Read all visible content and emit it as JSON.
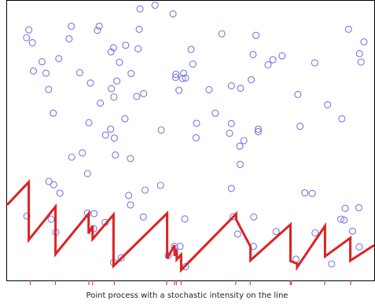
{
  "chart_data": {
    "type": "scatter",
    "title": "",
    "caption": "Point process with a stochastic intensity on the line",
    "xlim": [
      0,
      100
    ],
    "ylim": [
      0,
      100
    ],
    "grid": false,
    "legend": "none",
    "colors": {
      "points": "#7878e8",
      "intensity": "#dd2222",
      "frame": "#000000"
    },
    "points": [
      [
        40.3,
        98.4
      ],
      [
        36.2,
        97.1
      ],
      [
        45.2,
        95.3
      ],
      [
        17.5,
        90.9
      ],
      [
        25.1,
        90.9
      ],
      [
        36.0,
        89.8
      ],
      [
        93.0,
        89.8
      ],
      [
        5.9,
        89.6
      ],
      [
        24.6,
        89.4
      ],
      [
        58.5,
        88.2
      ],
      [
        67.8,
        87.6
      ],
      [
        5.3,
        86.8
      ],
      [
        16.9,
        86.4
      ],
      [
        6.9,
        85.0
      ],
      [
        97.2,
        85.3
      ],
      [
        32.3,
        84.1
      ],
      [
        29.0,
        83.2
      ],
      [
        35.7,
        82.8
      ],
      [
        50.1,
        82.6
      ],
      [
        28.3,
        81.7
      ],
      [
        67.0,
        80.8
      ],
      [
        96.0,
        81.1
      ],
      [
        74.9,
        80.3
      ],
      [
        14.1,
        79.3
      ],
      [
        72.4,
        78.9
      ],
      [
        9.5,
        78.2
      ],
      [
        30.6,
        78.0
      ],
      [
        83.8,
        77.8
      ],
      [
        71.1,
        77.1
      ],
      [
        50.6,
        77.4
      ],
      [
        96.4,
        78.1
      ],
      [
        7.2,
        74.9
      ],
      [
        10.6,
        74.1
      ],
      [
        19.8,
        74.3
      ],
      [
        48.1,
        74.1
      ],
      [
        33.8,
        74.0
      ],
      [
        46.0,
        73.7
      ],
      [
        47.8,
        72.2
      ],
      [
        48.6,
        72.4
      ],
      [
        66.5,
        71.8
      ],
      [
        29.9,
        71.3
      ],
      [
        45.9,
        72.6
      ],
      [
        22.7,
        70.6
      ],
      [
        61.1,
        69.6
      ],
      [
        11.3,
        68.3
      ],
      [
        28.4,
        68.6
      ],
      [
        46.8,
        68.0
      ],
      [
        55.0,
        68.2
      ],
      [
        63.6,
        68.7
      ],
      [
        29.1,
        65.6
      ],
      [
        37.2,
        66.8
      ],
      [
        79.2,
        66.5
      ],
      [
        35.3,
        65.8
      ],
      [
        25.4,
        63.4
      ],
      [
        87.3,
        62.8
      ],
      [
        12.6,
        59.8
      ],
      [
        56.7,
        59.8
      ],
      [
        32.1,
        57.8
      ],
      [
        91.2,
        57.8
      ],
      [
        22.3,
        56.4
      ],
      [
        51.6,
        56.2
      ],
      [
        61.1,
        56.1
      ],
      [
        79.8,
        55.1
      ],
      [
        28.2,
        54.1
      ],
      [
        42.0,
        53.8
      ],
      [
        68.4,
        54.1
      ],
      [
        68.4,
        53.2
      ],
      [
        26.8,
        52.0
      ],
      [
        60.6,
        52.6
      ],
      [
        51.5,
        51.0
      ],
      [
        29.2,
        50.9
      ],
      [
        64.5,
        50.0
      ],
      [
        63.4,
        48.0
      ],
      [
        20.5,
        45.6
      ],
      [
        17.6,
        44.1
      ],
      [
        29.5,
        44.9
      ],
      [
        33.6,
        43.6
      ],
      [
        63.5,
        41.5
      ],
      [
        21.9,
        38.2
      ],
      [
        11.4,
        35.4
      ],
      [
        12.7,
        34.2
      ],
      [
        41.8,
        34.0
      ],
      [
        61.1,
        32.9
      ],
      [
        37.6,
        32.3
      ],
      [
        14.4,
        31.2
      ],
      [
        33.1,
        30.4
      ],
      [
        81.1,
        31.3
      ],
      [
        83.1,
        31.1
      ],
      [
        33.6,
        27.0
      ],
      [
        95.8,
        26.0
      ],
      [
        92.1,
        25.8
      ],
      [
        23.7,
        23.9
      ],
      [
        21.9,
        24.1
      ],
      [
        5.4,
        23.0
      ],
      [
        12.0,
        21.9
      ],
      [
        37.1,
        22.7
      ],
      [
        61.6,
        22.8
      ],
      [
        67.2,
        22.7
      ],
      [
        48.4,
        22.0
      ],
      [
        90.9,
        21.9
      ],
      [
        91.8,
        21.6
      ],
      [
        26.7,
        20.7
      ],
      [
        23.6,
        18.5
      ],
      [
        13.3,
        17.2
      ],
      [
        73.3,
        17.5
      ],
      [
        94.1,
        17.6
      ],
      [
        62.8,
        16.6
      ],
      [
        83.9,
        17.0
      ],
      [
        67.1,
        12.2
      ],
      [
        45.6,
        12.2
      ],
      [
        47.1,
        12.2
      ],
      [
        95.9,
        12.0
      ],
      [
        43.9,
        8.9
      ],
      [
        31.1,
        8.1
      ],
      [
        29.0,
        6.5
      ],
      [
        78.7,
        7.6
      ],
      [
        88.4,
        5.9
      ],
      [
        48.6,
        4.9
      ]
    ],
    "intensity": [
      [
        0,
        27.0
      ],
      [
        5.9,
        35.2
      ],
      [
        5.9,
        14.5
      ],
      [
        13.2,
        26.4
      ],
      [
        13.2,
        9.4
      ],
      [
        22.2,
        23.9
      ],
      [
        22.2,
        16.8
      ],
      [
        23.3,
        19.5
      ],
      [
        23.3,
        14.8
      ],
      [
        29.0,
        23.5
      ],
      [
        29.0,
        5.2
      ],
      [
        43.6,
        24.0
      ],
      [
        43.6,
        7.8
      ],
      [
        45.6,
        12.6
      ],
      [
        45.6,
        8.8
      ],
      [
        46.2,
        11.0
      ],
      [
        46.2,
        7.5
      ],
      [
        47.4,
        9.2
      ],
      [
        47.4,
        3.7
      ],
      [
        62.4,
        23.8
      ],
      [
        62.4,
        21.8
      ],
      [
        66.3,
        12.1
      ],
      [
        66.3,
        7.2
      ],
      [
        77.2,
        20.0
      ],
      [
        77.2,
        6.9
      ],
      [
        79.0,
        6.0
      ],
      [
        79.0,
        4.7
      ],
      [
        86.6,
        19.5
      ],
      [
        86.6,
        8.6
      ],
      [
        93.5,
        15.2
      ],
      [
        93.5,
        7.1
      ],
      [
        100,
        12.6
      ]
    ],
    "events": [
      6.3,
      13.2,
      22.3,
      23.3,
      29.2,
      43.5,
      45.6,
      46.1,
      47.4,
      62.3,
      66.2,
      77.1,
      77.4,
      86.5,
      93.6
    ]
  }
}
